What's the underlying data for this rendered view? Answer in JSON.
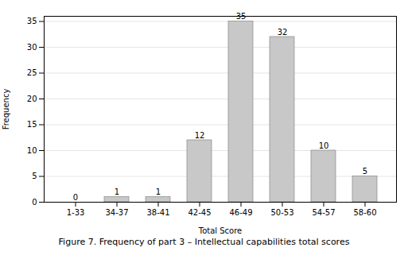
{
  "chart_data": {
    "type": "bar",
    "categories": [
      "1-33",
      "34-37",
      "38-41",
      "42-45",
      "46-49",
      "50-53",
      "54-57",
      "58-60"
    ],
    "values": [
      0,
      1,
      1,
      12,
      35,
      32,
      10,
      5
    ],
    "color": "#c8c8c8",
    "xlabel": "Total Score",
    "ylabel": "Frequency",
    "caption": "Figure 7. Frequency of part 3 – Intellectual capabilities total scores",
    "ylim": [
      0,
      36
    ],
    "yticks": [
      0,
      5,
      10,
      15,
      20,
      25,
      30,
      35
    ],
    "grid": true,
    "data_labels": true
  }
}
